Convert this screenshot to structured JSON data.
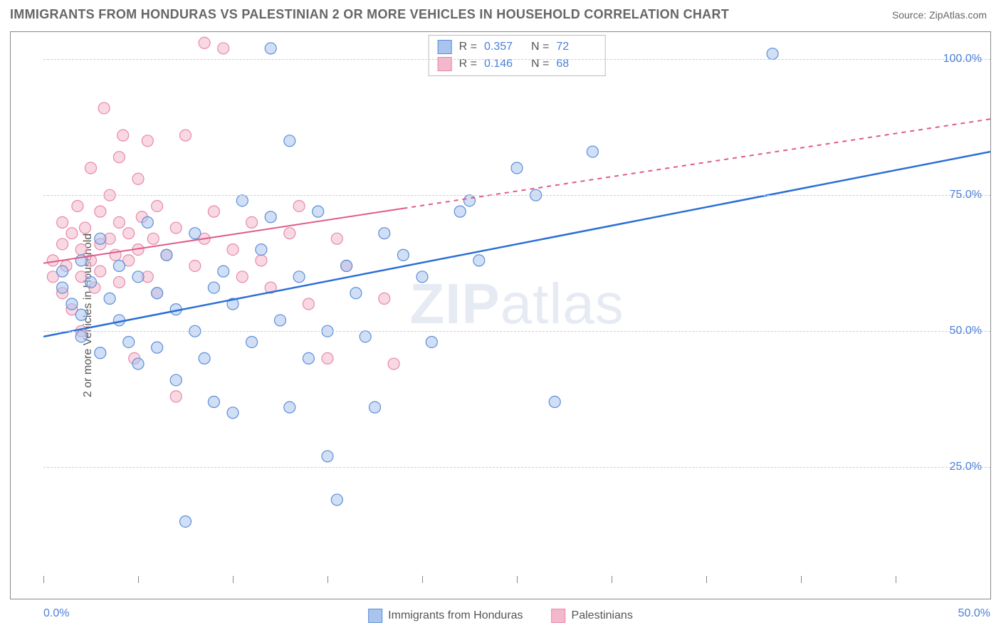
{
  "header": {
    "title": "IMMIGRANTS FROM HONDURAS VS PALESTINIAN 2 OR MORE VEHICLES IN HOUSEHOLD CORRELATION CHART",
    "source": "Source: ZipAtlas.com"
  },
  "chart": {
    "type": "scatter",
    "ylabel": "2 or more Vehicles in Household",
    "watermark": "ZIPatlas",
    "background_color": "#ffffff",
    "grid_color": "#cccccc",
    "border_color": "#888888",
    "xlim": [
      0,
      50
    ],
    "ylim": [
      5,
      105
    ],
    "y_ticks": [
      25,
      50,
      75,
      100
    ],
    "y_tick_labels": [
      "25.0%",
      "50.0%",
      "75.0%",
      "100.0%"
    ],
    "x_ticks": [
      0,
      5,
      10,
      15,
      20,
      25,
      30,
      35,
      40,
      45,
      50
    ],
    "x_tick_label_left": "0.0%",
    "x_tick_label_right": "50.0%",
    "marker_radius": 8,
    "marker_opacity": 0.55,
    "series": [
      {
        "name": "Immigrants from Honduras",
        "color_fill": "#a9c5ee",
        "color_stroke": "#5b8ed6",
        "R": "0.357",
        "N": "72",
        "trend": {
          "x1": 0,
          "y1": 49,
          "x2": 50,
          "y2": 83,
          "color": "#2b6fd6",
          "width": 2.5,
          "dash_after_x": 50
        },
        "points": [
          [
            1,
            61
          ],
          [
            1,
            58
          ],
          [
            1.5,
            55
          ],
          [
            2,
            63
          ],
          [
            2,
            53
          ],
          [
            2,
            49
          ],
          [
            2.5,
            59
          ],
          [
            3,
            67
          ],
          [
            3,
            46
          ],
          [
            3.5,
            56
          ],
          [
            4,
            62
          ],
          [
            4,
            52
          ],
          [
            4.5,
            48
          ],
          [
            5,
            60
          ],
          [
            5,
            44
          ],
          [
            5.5,
            70
          ],
          [
            6,
            57
          ],
          [
            6,
            47
          ],
          [
            6.5,
            64
          ],
          [
            7,
            54
          ],
          [
            7,
            41
          ],
          [
            7.5,
            15
          ],
          [
            8,
            68
          ],
          [
            8,
            50
          ],
          [
            8.5,
            45
          ],
          [
            9,
            58
          ],
          [
            9,
            37
          ],
          [
            9.5,
            61
          ],
          [
            10,
            55
          ],
          [
            10,
            35
          ],
          [
            10.5,
            74
          ],
          [
            11,
            48
          ],
          [
            11.5,
            65
          ],
          [
            12,
            102
          ],
          [
            12,
            71
          ],
          [
            12.5,
            52
          ],
          [
            13,
            36
          ],
          [
            13,
            85
          ],
          [
            13.5,
            60
          ],
          [
            14,
            45
          ],
          [
            14.5,
            72
          ],
          [
            15,
            27
          ],
          [
            15,
            50
          ],
          [
            15.5,
            19
          ],
          [
            16,
            62
          ],
          [
            16.5,
            57
          ],
          [
            17,
            49
          ],
          [
            17.5,
            36
          ],
          [
            18,
            68
          ],
          [
            19,
            64
          ],
          [
            20,
            60
          ],
          [
            20.5,
            48
          ],
          [
            22,
            72
          ],
          [
            22.5,
            74
          ],
          [
            23,
            63
          ],
          [
            25,
            80
          ],
          [
            26,
            75
          ],
          [
            27,
            37
          ],
          [
            29,
            83
          ],
          [
            38.5,
            101
          ]
        ]
      },
      {
        "name": "Palestinians",
        "color_fill": "#f3b8cb",
        "color_stroke": "#e889a9",
        "R": "0.146",
        "N": "68",
        "trend": {
          "x1": 0,
          "y1": 62.5,
          "x2": 50,
          "y2": 89,
          "color": "#e05a8a",
          "width": 2,
          "dash_after_x": 19
        },
        "points": [
          [
            0.5,
            63
          ],
          [
            0.5,
            60
          ],
          [
            1,
            66
          ],
          [
            1,
            57
          ],
          [
            1,
            70
          ],
          [
            1.2,
            62
          ],
          [
            1.5,
            68
          ],
          [
            1.5,
            54
          ],
          [
            1.8,
            73
          ],
          [
            2,
            60
          ],
          [
            2,
            65
          ],
          [
            2,
            50
          ],
          [
            2.2,
            69
          ],
          [
            2.5,
            80
          ],
          [
            2.5,
            63
          ],
          [
            2.7,
            58
          ],
          [
            3,
            72
          ],
          [
            3,
            66
          ],
          [
            3,
            61
          ],
          [
            3.2,
            91
          ],
          [
            3.5,
            75
          ],
          [
            3.5,
            67
          ],
          [
            3.8,
            64
          ],
          [
            4,
            82
          ],
          [
            4,
            70
          ],
          [
            4,
            59
          ],
          [
            4.2,
            86
          ],
          [
            4.5,
            68
          ],
          [
            4.5,
            63
          ],
          [
            4.8,
            45
          ],
          [
            5,
            78
          ],
          [
            5,
            65
          ],
          [
            5.2,
            71
          ],
          [
            5.5,
            85
          ],
          [
            5.5,
            60
          ],
          [
            5.8,
            67
          ],
          [
            6,
            73
          ],
          [
            6,
            57
          ],
          [
            6.5,
            64
          ],
          [
            7,
            69
          ],
          [
            7,
            38
          ],
          [
            7.5,
            86
          ],
          [
            8,
            62
          ],
          [
            8.5,
            103
          ],
          [
            8.5,
            67
          ],
          [
            9,
            72
          ],
          [
            9.5,
            102
          ],
          [
            10,
            65
          ],
          [
            10.5,
            60
          ],
          [
            11,
            70
          ],
          [
            11.5,
            63
          ],
          [
            12,
            58
          ],
          [
            13,
            68
          ],
          [
            13.5,
            73
          ],
          [
            14,
            55
          ],
          [
            15,
            45
          ],
          [
            15.5,
            67
          ],
          [
            16,
            62
          ],
          [
            18,
            56
          ],
          [
            18.5,
            44
          ]
        ]
      }
    ],
    "legend_top": {
      "labels": {
        "R": "R =",
        "N": "N ="
      }
    },
    "bottom_legend": {
      "items": [
        "Immigrants from Honduras",
        "Palestinians"
      ]
    }
  }
}
